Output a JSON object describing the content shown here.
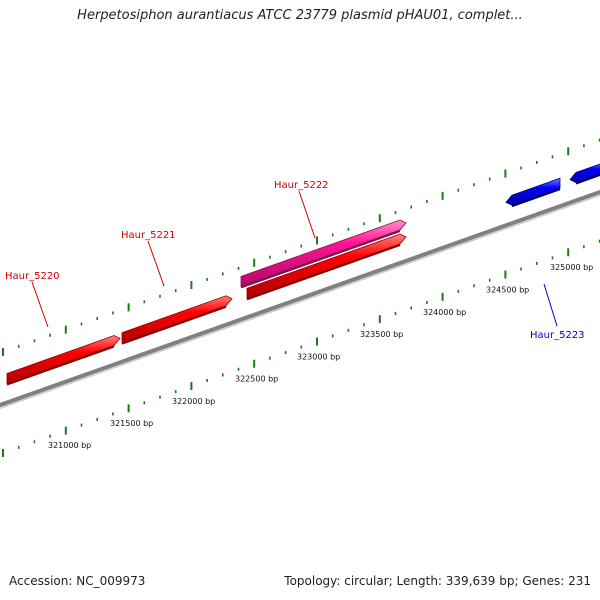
{
  "title": "Herpetosiphon aurantiacus ATCC 23779 plasmid pHAU01, complet...",
  "footer": {
    "accession": "Accession: NC_009973",
    "summary": "Topology: circular; Length: 339,639 bp; Genes: 231"
  },
  "colors": {
    "backbone": "#808080",
    "plus_strand_gene": "#ff0000",
    "plus_strand_pseudo": "#ff1493",
    "minus_strand_gene": "#0000ff",
    "tick": "#1a7a1a",
    "gene_label_plus": "#cc0000",
    "gene_label_minus": "#0000cc"
  },
  "map": {
    "ruler_labels": [
      {
        "bp": 321000,
        "text": "321000 bp"
      },
      {
        "bp": 321500,
        "text": "321500 bp"
      },
      {
        "bp": 322000,
        "text": "322000 bp"
      },
      {
        "bp": 322500,
        "text": "322500 bp"
      },
      {
        "bp": 323000,
        "text": "323000 bp"
      },
      {
        "bp": 323500,
        "text": "323500 bp"
      },
      {
        "bp": 324000,
        "text": "324000 bp"
      },
      {
        "bp": 324500,
        "text": "324500 bp"
      },
      {
        "bp": 325000,
        "text": "325000 bp"
      }
    ],
    "genes": [
      {
        "id": "Haur_5220",
        "strand": "+",
        "color": "#ff0000",
        "labeled": true
      },
      {
        "id": "Haur_5221",
        "strand": "+",
        "color": "#ff0000",
        "labeled": true
      },
      {
        "id": "Haur_5222",
        "strand": "+",
        "color": "#ff1493",
        "labeled": true
      },
      {
        "id": "gene_unlabeled_1",
        "strand": "+",
        "color": "#ff0000",
        "labeled": false
      },
      {
        "id": "Haur_5223",
        "strand": "-",
        "color": "#0000ff",
        "labeled": true
      },
      {
        "id": "gene_unlabeled_2",
        "strand": "-",
        "color": "#0000ff",
        "labeled": false
      }
    ]
  }
}
